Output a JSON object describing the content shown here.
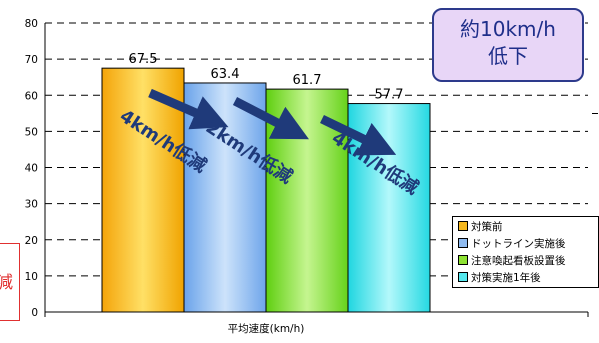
{
  "chart_data": {
    "type": "bar",
    "categories": [
      "対策前",
      "ドットライン実施後",
      "注意喚起看板設置後",
      "対策実施1年後"
    ],
    "values": [
      67.5,
      63.4,
      61.7,
      57.7
    ],
    "value_labels": [
      "67.5",
      "63.4",
      "61.7",
      "57.7"
    ],
    "colors": [
      "#f6b81e",
      "#8fbbf0",
      "#8ee233",
      "#55e8ee"
    ],
    "xlabel": "平均速度(km/h)",
    "ylabel": "",
    "ylim": [
      0,
      80
    ],
    "yticks": [
      "0",
      "10",
      "20",
      "30",
      "40",
      "50",
      "60",
      "70",
      "80"
    ],
    "grid": "dashed horizontal",
    "legend_position": "bottom-right",
    "annotations": [
      {
        "text": "4km/h低減",
        "color": "#1f3a7a"
      },
      {
        "text": "2km/h低減",
        "color": "#1f3a7a"
      },
      {
        "text": "4km/h低減",
        "color": "#1f3a7a"
      }
    ]
  },
  "callout": {
    "line1": "約10km/h",
    "line2": "低下"
  },
  "edge_fragment": "減"
}
